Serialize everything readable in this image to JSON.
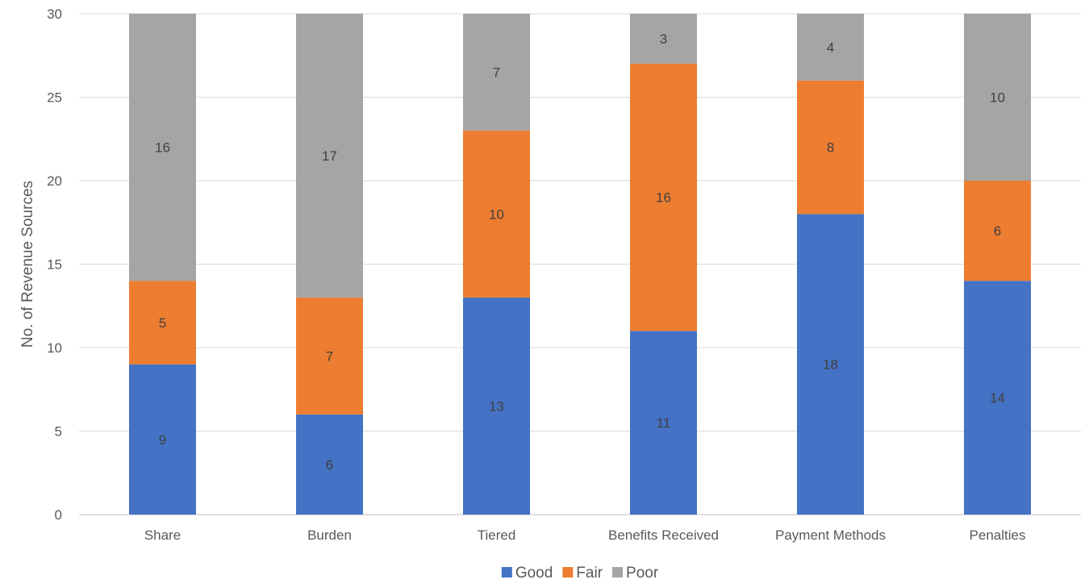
{
  "chart_data": {
    "type": "bar",
    "stacked": true,
    "title": "",
    "xlabel": "",
    "ylabel": "No. of Revenue Sources",
    "ylim": [
      0,
      30
    ],
    "yticks": [
      0,
      5,
      10,
      15,
      20,
      25,
      30
    ],
    "grid": true,
    "legend_position": "bottom",
    "categories": [
      "Share",
      "Burden",
      "Tiered",
      "Benefits Received",
      "Payment Methods",
      "Penalties"
    ],
    "series": [
      {
        "name": "Good",
        "color": "#4472C4",
        "values": [
          9,
          6,
          13,
          11,
          18,
          14
        ]
      },
      {
        "name": "Fair",
        "color": "#ED7D31",
        "values": [
          5,
          7,
          10,
          16,
          8,
          6
        ]
      },
      {
        "name": "Poor",
        "color": "#A5A5A5",
        "values": [
          16,
          17,
          7,
          3,
          4,
          10
        ]
      }
    ]
  }
}
